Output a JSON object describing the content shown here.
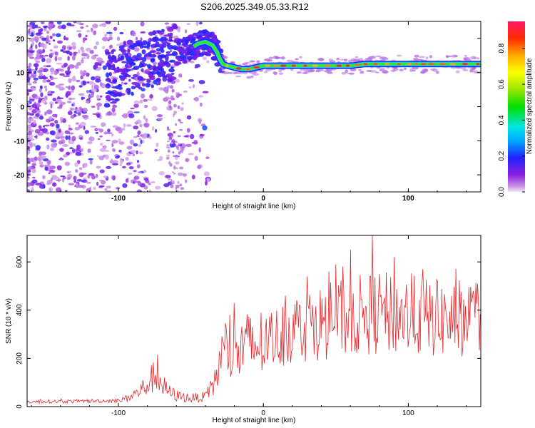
{
  "title": "S206.2025.349.05.33.R12",
  "chart_data": [
    {
      "type": "heatmap",
      "xlabel": "Height of straight line (km)",
      "ylabel": "Frequency (Hz)",
      "xlim": [
        -163,
        150
      ],
      "ylim": [
        -25,
        25
      ],
      "xticks": [
        "-100",
        "0",
        "100"
      ],
      "yticks": [
        "-20",
        "-10",
        "0",
        "10",
        "20"
      ],
      "colorbar": {
        "label": "Normalized spectral amplitude",
        "range": [
          0.0,
          0.95
        ],
        "ticks": [
          "0.0",
          "0.2",
          "0.4",
          "0.6",
          "0.8"
        ]
      },
      "ridge": {
        "x": [
          -105,
          -100,
          -95,
          -90,
          -85,
          -80,
          -75,
          -70,
          -65,
          -60,
          -55,
          -50,
          -45,
          -40,
          -35,
          -32,
          -30,
          -28,
          -25,
          -20,
          -15,
          -10,
          -5,
          0,
          5,
          10,
          20,
          30,
          40,
          50,
          60,
          70,
          80,
          90,
          100,
          110,
          120,
          130,
          140,
          150
        ],
        "y": [
          8,
          10,
          12,
          11,
          12,
          13,
          14,
          14.5,
          15,
          16,
          16.5,
          17,
          18.5,
          19,
          18,
          16,
          14,
          12.5,
          12,
          11.5,
          11,
          11,
          11.5,
          12,
          12,
          12,
          12,
          12,
          12,
          12,
          12,
          12.5,
          12.5,
          12.5,
          12.5,
          12.5,
          12.5,
          12.5,
          12.5,
          12.5
        ]
      }
    },
    {
      "type": "line",
      "xlabel": "Height of straight line (km)",
      "ylabel": "SNR (10 * v/v)",
      "xlim": [
        -163,
        150
      ],
      "ylim": [
        0,
        710
      ],
      "xticks": [
        "-100",
        "0",
        "100"
      ],
      "yticks": [
        "0",
        "200",
        "400",
        "600"
      ],
      "color": "#e8262a",
      "envelope_x": [
        -163,
        -130,
        -100,
        -90,
        -80,
        -75,
        -70,
        -65,
        -60,
        -50,
        -40,
        -35,
        -30,
        -25,
        -20,
        -15,
        -10,
        0,
        10,
        20,
        30,
        40,
        50,
        60,
        70,
        80,
        90,
        100,
        110,
        120,
        130,
        140,
        150
      ],
      "envelope_y": [
        20,
        22,
        25,
        45,
        90,
        130,
        90,
        60,
        45,
        35,
        40,
        80,
        180,
        260,
        200,
        240,
        250,
        260,
        290,
        320,
        340,
        350,
        360,
        370,
        380,
        390,
        380,
        380,
        370,
        365,
        360,
        370,
        360
      ],
      "peaks_x": [
        -73,
        -20,
        75,
        60,
        90,
        30,
        45,
        110,
        120,
        145,
        15,
        50
      ],
      "peaks_y": [
        215,
        430,
        715,
        650,
        620,
        540,
        560,
        570,
        520,
        480,
        460,
        590
      ]
    }
  ]
}
